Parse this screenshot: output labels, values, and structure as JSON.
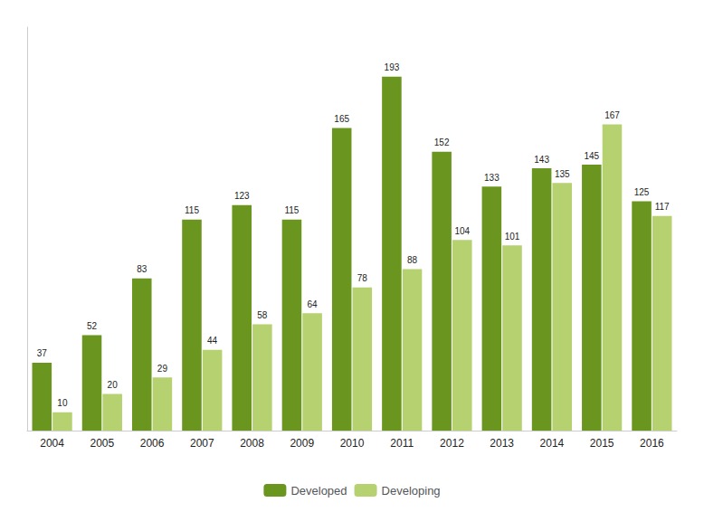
{
  "chart_data": {
    "type": "bar",
    "categories": [
      "2004",
      "2005",
      "2006",
      "2007",
      "2008",
      "2009",
      "2010",
      "2011",
      "2012",
      "2013",
      "2014",
      "2015",
      "2016"
    ],
    "series": [
      {
        "name": "Developed",
        "color": "#6a961f",
        "values": [
          37,
          52,
          83,
          115,
          123,
          115,
          165,
          193,
          152,
          133,
          143,
          145,
          125
        ]
      },
      {
        "name": "Developing",
        "color": "#b5d170",
        "values": [
          10,
          20,
          29,
          44,
          58,
          64,
          78,
          88,
          104,
          101,
          135,
          167,
          117
        ]
      }
    ],
    "ylim": [
      0,
      220
    ],
    "grid": false,
    "legend": "bottom",
    "data_labels": true,
    "tick_labels": "x"
  }
}
